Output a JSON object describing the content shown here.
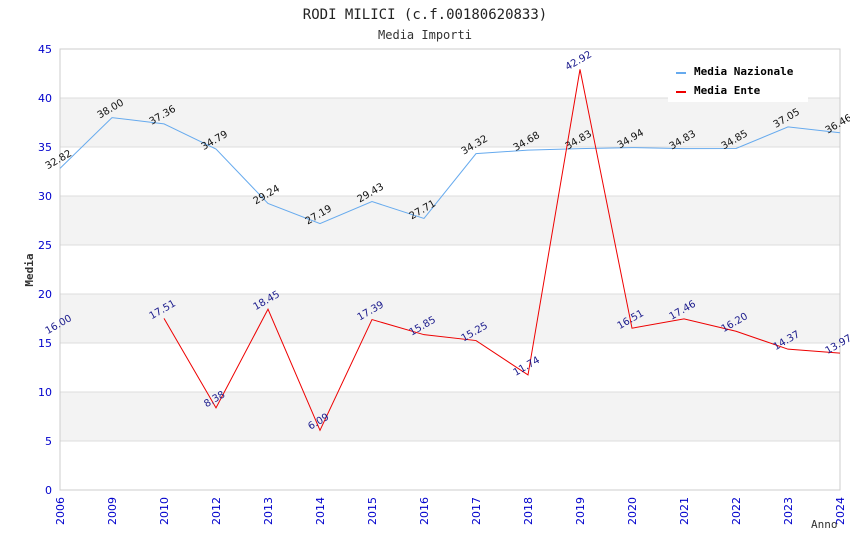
{
  "chart_data": {
    "type": "line",
    "title": "RODI MILICI (c.f.00180620833)",
    "subtitle": "Media Importi",
    "xlabel": "Anno",
    "ylabel": "Media",
    "ylim": [
      0,
      45
    ],
    "yticks": [
      0,
      5,
      10,
      15,
      20,
      25,
      30,
      35,
      40,
      45
    ],
    "categories": [
      "2006",
      "2009",
      "2010",
      "2012",
      "2013",
      "2014",
      "2015",
      "2016",
      "2017",
      "2018",
      "2019",
      "2020",
      "2021",
      "2022",
      "2023",
      "2024"
    ],
    "grid": true,
    "legend_position": "top-right",
    "series": [
      {
        "name": "Media Nazionale",
        "color": "#66aaee",
        "values": [
          32.82,
          38.0,
          37.36,
          34.79,
          29.24,
          27.19,
          29.43,
          27.71,
          34.32,
          34.68,
          34.83,
          34.94,
          34.83,
          34.85,
          37.05,
          36.46
        ],
        "labels": [
          "32.82",
          "38.00",
          "37.36",
          "34.79",
          "29.24",
          "27.19",
          "29.43",
          "27.71",
          "34.32",
          "34.68",
          "34.83",
          "34.94",
          "34.83",
          "34.85",
          "37.05",
          "36.46"
        ]
      },
      {
        "name": "Media Ente",
        "color": "#ee0000",
        "values": [
          16.0,
          null,
          17.51,
          8.38,
          18.45,
          6.09,
          17.39,
          15.85,
          15.25,
          11.74,
          42.92,
          16.51,
          17.46,
          16.2,
          14.37,
          13.97
        ],
        "labels": [
          "16.00",
          null,
          "17.51",
          "8.38",
          "18.45",
          "6.09",
          "17.39",
          "15.85",
          "15.25",
          "11.74",
          "42.92",
          "16.51",
          "17.46",
          "16.20",
          "14.37",
          "13.97"
        ]
      }
    ]
  }
}
